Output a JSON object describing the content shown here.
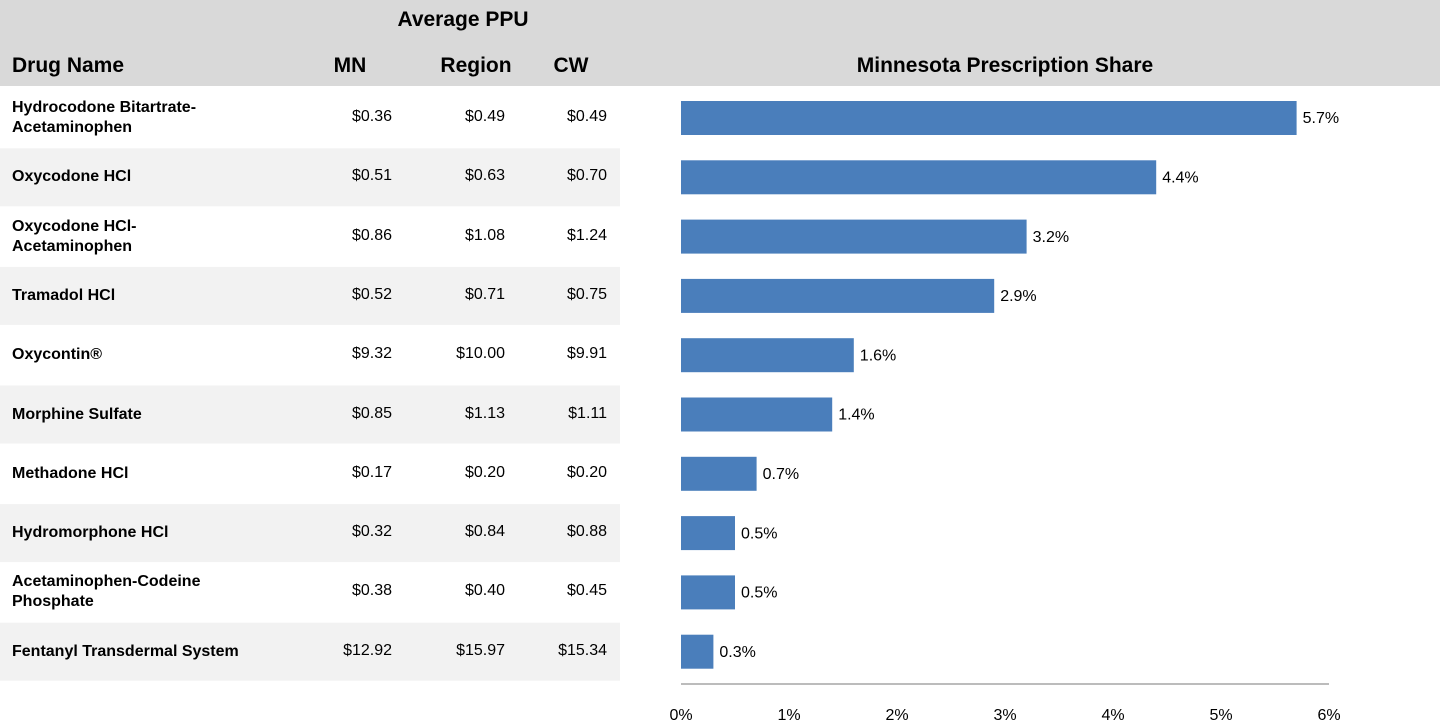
{
  "table": {
    "title": "Average PPU",
    "columns": [
      "Drug Name",
      "MN",
      "Region",
      "CW"
    ],
    "rows": [
      [
        "Hydrocodone Bitartrate-Acetaminophen",
        "$0.36",
        "$0.49",
        "$0.49"
      ],
      [
        "Oxycodone HCl",
        "$0.51",
        "$0.63",
        "$0.70"
      ],
      [
        "Oxycodone HCl-Acetaminophen",
        "$0.86",
        "$1.08",
        "$1.24"
      ],
      [
        "Tramadol HCl",
        "$0.52",
        "$0.71",
        "$0.75"
      ],
      [
        "Oxycontin®",
        "$9.32",
        "$10.00",
        "$9.91"
      ],
      [
        "Morphine Sulfate",
        "$0.85",
        "$1.13",
        "$1.11"
      ],
      [
        "Methadone HCl",
        "$0.17",
        "$0.20",
        "$0.20"
      ],
      [
        "Hydromorphone HCl",
        "$0.32",
        "$0.84",
        "$0.88"
      ],
      [
        "Acetaminophen-Codeine Phosphate",
        "$0.38",
        "$0.40",
        "$0.45"
      ],
      [
        "Fentanyl Transdermal System",
        "$12.92",
        "$15.97",
        "$15.34"
      ]
    ]
  },
  "chart_data": {
    "type": "bar",
    "title": "Minnesota Prescription Share",
    "values": [
      5.7,
      4.4,
      3.2,
      2.9,
      1.6,
      1.4,
      0.7,
      0.5,
      0.5,
      0.3
    ],
    "value_labels": [
      "5.7%",
      "4.4%",
      "3.2%",
      "2.9%",
      "1.6%",
      "1.4%",
      "0.7%",
      "0.5%",
      "0.5%",
      "0.3%"
    ],
    "color": "#4a7ebb",
    "xlim": [
      0,
      6
    ],
    "xticks": [
      {
        "value": 0,
        "label": "0%"
      },
      {
        "value": 1,
        "label": "1%"
      },
      {
        "value": 2,
        "label": "2%"
      },
      {
        "value": 3,
        "label": "3%"
      },
      {
        "value": 4,
        "label": "4%"
      },
      {
        "value": 5,
        "label": "5%"
      },
      {
        "value": 6,
        "label": "6%"
      }
    ]
  }
}
